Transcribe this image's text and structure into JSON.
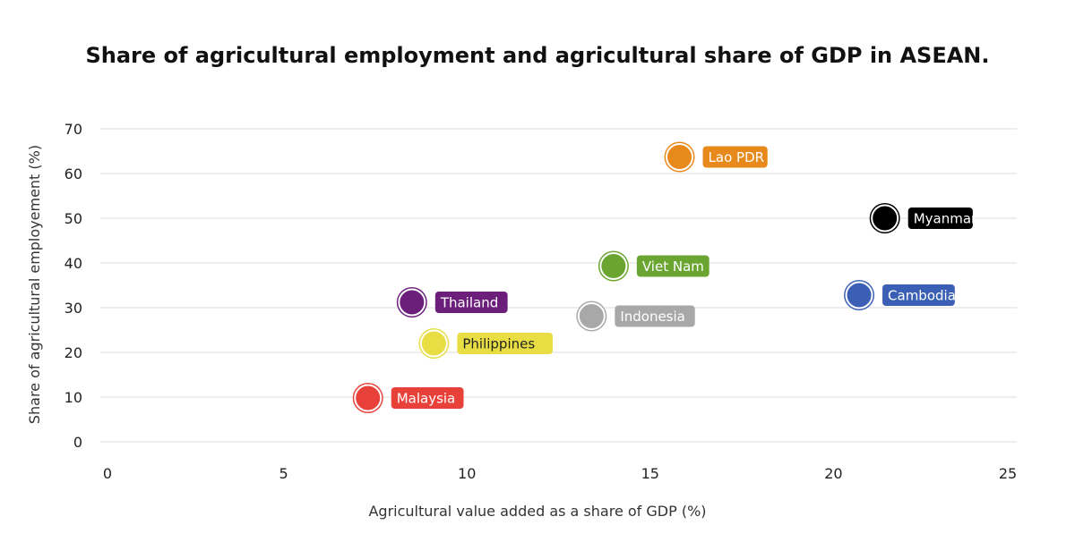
{
  "chart_data": {
    "type": "scatter",
    "title": "Share of agricultural employment and agricultural share of GDP in ASEAN.",
    "xlabel": "Agricultural value added as a share of GDP (%)",
    "ylabel": "Share of agricultural employement (%)",
    "xlim": [
      0,
      25
    ],
    "ylim": [
      0,
      70
    ],
    "xticks": [
      0,
      5,
      10,
      15,
      20,
      25
    ],
    "yticks": [
      0,
      10,
      20,
      30,
      40,
      50,
      60,
      70
    ],
    "grid": "horizontal",
    "legend": "none",
    "points": [
      {
        "label": "Lao PDR",
        "x": 15.8,
        "y": 63.7,
        "color": "#e8891c",
        "text_color": "#ffffff"
      },
      {
        "label": "Myanmar",
        "x": 21.4,
        "y": 50.0,
        "color": "#000000",
        "text_color": "#ffffff"
      },
      {
        "label": "Viet Nam",
        "x": 14.0,
        "y": 39.3,
        "color": "#6aa531",
        "text_color": "#ffffff"
      },
      {
        "label": "Cambodia",
        "x": 20.7,
        "y": 32.8,
        "color": "#3a5fb5",
        "text_color": "#ffffff"
      },
      {
        "label": "Thailand",
        "x": 8.5,
        "y": 31.2,
        "color": "#6b1f7b",
        "text_color": "#ffffff"
      },
      {
        "label": "Indonesia",
        "x": 13.4,
        "y": 28.1,
        "color": "#a8a8a8",
        "text_color": "#ffffff"
      },
      {
        "label": "Philippines",
        "x": 9.1,
        "y": 22.0,
        "color": "#e8de44",
        "text_color": "#222222"
      },
      {
        "label": "Malaysia",
        "x": 7.3,
        "y": 9.8,
        "color": "#e8413a",
        "text_color": "#ffffff"
      }
    ]
  }
}
